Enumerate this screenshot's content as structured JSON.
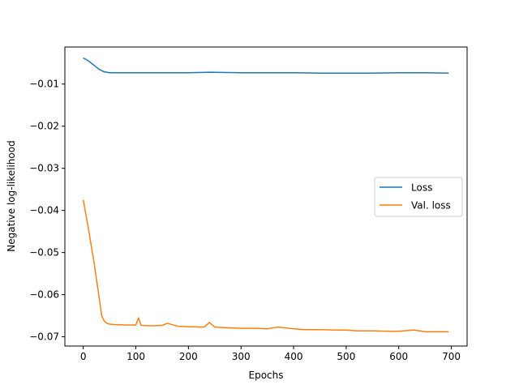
{
  "chart_data": {
    "type": "line",
    "title": "",
    "xlabel": "Epochs",
    "ylabel": "Negative log-likelihood",
    "xlim": [
      -35,
      730
    ],
    "ylim": [
      -0.0722,
      -0.0012
    ],
    "x_ticks": [
      0,
      100,
      200,
      300,
      400,
      500,
      600,
      700
    ],
    "x_tick_labels": [
      "0",
      "100",
      "200",
      "300",
      "400",
      "500",
      "600",
      "700"
    ],
    "y_ticks": [
      -0.01,
      -0.02,
      -0.03,
      -0.04,
      -0.05,
      -0.06,
      -0.07
    ],
    "y_tick_labels": [
      "−0.01",
      "−0.02",
      "−0.03",
      "−0.04",
      "−0.05",
      "−0.06",
      "−0.07"
    ],
    "grid": false,
    "legend_position": "center-right",
    "series": [
      {
        "name": "Loss",
        "color": "#1f77b4",
        "x": [
          0,
          10,
          20,
          30,
          40,
          50,
          75,
          100,
          150,
          200,
          240,
          300,
          350,
          400,
          450,
          500,
          550,
          600,
          650,
          695
        ],
        "y": [
          -0.0038,
          -0.0045,
          -0.0055,
          -0.0065,
          -0.0071,
          -0.0073,
          -0.0073,
          -0.0073,
          -0.0073,
          -0.0073,
          -0.0072,
          -0.0073,
          -0.0073,
          -0.0073,
          -0.0074,
          -0.0074,
          -0.0074,
          -0.0073,
          -0.0073,
          -0.0074
        ]
      },
      {
        "name": "Val. loss",
        "color": "#ff7f0e",
        "x": [
          0,
          10,
          20,
          30,
          35,
          40,
          45,
          50,
          60,
          80,
          100,
          105,
          110,
          130,
          150,
          160,
          180,
          200,
          230,
          240,
          250,
          280,
          300,
          330,
          350,
          370,
          400,
          420,
          450,
          480,
          500,
          520,
          550,
          580,
          600,
          630,
          650,
          670,
          695
        ],
        "y": [
          -0.0375,
          -0.0445,
          -0.052,
          -0.0605,
          -0.065,
          -0.0663,
          -0.0668,
          -0.067,
          -0.0671,
          -0.0672,
          -0.0672,
          -0.0655,
          -0.0673,
          -0.0674,
          -0.0673,
          -0.0668,
          -0.0675,
          -0.0676,
          -0.0677,
          -0.0666,
          -0.0677,
          -0.0679,
          -0.068,
          -0.068,
          -0.0681,
          -0.0677,
          -0.0681,
          -0.0683,
          -0.0683,
          -0.0684,
          -0.0684,
          -0.0686,
          -0.0686,
          -0.0687,
          -0.0687,
          -0.0684,
          -0.0688,
          -0.0688,
          -0.0688
        ]
      }
    ]
  }
}
